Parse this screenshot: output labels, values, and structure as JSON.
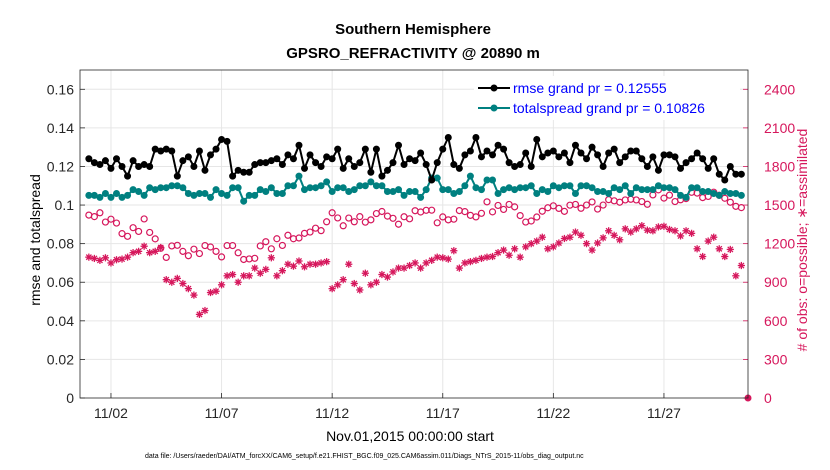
{
  "colors": {
    "rmse": "#000000",
    "spread": "#008080",
    "obs": "#d6175c",
    "legend_text": "#0000ff",
    "grid": "#e6e6e6"
  },
  "chart_data": {
    "type": "line",
    "title": "Southern Hemisphere",
    "subtitle": "GPSRO_REFRACTIVITY @ 20890 m",
    "xlabel": "Nov.01,2015 00:00:00 start",
    "ylabel": "rmse and totalspread",
    "y2label": "# of obs: o=possible; ∗=assimilated",
    "footnote": "data file: /Users/raeder/DAI/ATM_forcXX/CAM6_setup/f.e21.FHIST_BGC.f09_025.CAM6assim.011/Diags_NTrS_2015-11/obs_diag_output.nc",
    "xlim": [
      0.6,
      30.8
    ],
    "xticks": [
      2,
      7,
      12,
      17,
      22,
      27
    ],
    "xtick_labels": [
      "11/02",
      "11/07",
      "11/12",
      "11/17",
      "11/22",
      "11/27"
    ],
    "ylim": [
      0,
      0.17
    ],
    "yticks": [
      0,
      0.02,
      0.04,
      0.06,
      0.08,
      0.1,
      0.12,
      0.14,
      0.16
    ],
    "ytick_labels": [
      "0",
      "0.02",
      "0.04",
      "0.06",
      "0.08",
      "0.1",
      "0.12",
      "0.14",
      "0.16"
    ],
    "y2lim": [
      0,
      2550
    ],
    "y2ticks": [
      0,
      300,
      600,
      900,
      1200,
      1500,
      1800,
      2100,
      2400
    ],
    "y2tick_labels": [
      "0",
      "300",
      "600",
      "900",
      "1200",
      "1500",
      "1800",
      "2100",
      "2400"
    ],
    "legend": [
      "rmse grand pr = 0.12555",
      "totalspread grand pr = 0.10826"
    ],
    "legend_position": "top-right",
    "x": [
      1,
      1.25,
      1.5,
      1.75,
      2,
      2.25,
      2.5,
      2.75,
      3,
      3.25,
      3.5,
      3.75,
      4,
      4.25,
      4.5,
      4.75,
      5,
      5.25,
      5.5,
      5.75,
      6,
      6.25,
      6.5,
      6.75,
      7,
      7.25,
      7.5,
      7.75,
      8,
      8.25,
      8.5,
      8.75,
      9,
      9.25,
      9.5,
      9.75,
      10,
      10.25,
      10.5,
      10.75,
      11,
      11.25,
      11.5,
      11.75,
      12,
      12.25,
      12.5,
      12.75,
      13,
      13.25,
      13.5,
      13.75,
      14,
      14.25,
      14.5,
      14.75,
      15,
      15.25,
      15.5,
      15.75,
      16,
      16.25,
      16.5,
      16.75,
      17,
      17.25,
      17.5,
      17.75,
      18,
      18.25,
      18.5,
      18.75,
      19,
      19.25,
      19.5,
      19.75,
      20,
      20.25,
      20.5,
      20.75,
      21,
      21.25,
      21.5,
      21.75,
      22,
      22.25,
      22.5,
      22.75,
      23,
      23.25,
      23.5,
      23.75,
      24,
      24.25,
      24.5,
      24.75,
      25,
      25.25,
      25.5,
      25.75,
      26,
      26.25,
      26.5,
      26.75,
      27,
      27.25,
      27.5,
      27.75,
      28,
      28.25,
      28.5,
      28.75,
      29,
      29.25,
      29.5,
      29.75,
      30,
      30.25,
      30.5
    ],
    "series": [
      {
        "name": "rmse",
        "marker": "filled-circle",
        "values": [
          0.124,
          0.122,
          0.121,
          0.123,
          0.119,
          0.124,
          0.12,
          0.115,
          0.123,
          0.12,
          0.121,
          0.12,
          0.129,
          0.128,
          0.129,
          0.128,
          0.115,
          0.123,
          0.125,
          0.12,
          0.128,
          0.118,
          0.126,
          0.129,
          0.134,
          0.133,
          0.115,
          0.118,
          0.117,
          0.117,
          0.121,
          0.122,
          0.122,
          0.123,
          0.124,
          0.121,
          0.126,
          0.124,
          0.131,
          0.119,
          0.126,
          0.122,
          0.12,
          0.125,
          0.124,
          0.129,
          0.119,
          0.124,
          0.12,
          0.122,
          0.129,
          0.117,
          0.129,
          0.115,
          0.118,
          0.122,
          0.131,
          0.121,
          0.124,
          0.123,
          0.127,
          0.121,
          0.113,
          0.122,
          0.129,
          0.135,
          0.121,
          0.119,
          0.126,
          0.128,
          0.135,
          0.125,
          0.128,
          0.126,
          0.131,
          0.129,
          0.122,
          0.12,
          0.121,
          0.127,
          0.12,
          0.134,
          0.125,
          0.127,
          0.128,
          0.125,
          0.127,
          0.122,
          0.131,
          0.127,
          0.124,
          0.13,
          0.126,
          0.12,
          0.127,
          0.129,
          0.122,
          0.125,
          0.128,
          0.128,
          0.124,
          0.12,
          0.125,
          0.118,
          0.126,
          0.126,
          0.125,
          0.119,
          0.122,
          0.124,
          0.127,
          0.124,
          0.119,
          0.124,
          0.116,
          0.113,
          0.12,
          0.116,
          0.116
        ]
      },
      {
        "name": "totalspread",
        "marker": "filled-circle",
        "values": [
          0.105,
          0.105,
          0.104,
          0.106,
          0.104,
          0.106,
          0.104,
          0.105,
          0.108,
          0.107,
          0.105,
          0.109,
          0.108,
          0.109,
          0.109,
          0.11,
          0.11,
          0.109,
          0.106,
          0.105,
          0.106,
          0.106,
          0.104,
          0.108,
          0.106,
          0.105,
          0.109,
          0.109,
          0.102,
          0.105,
          0.105,
          0.108,
          0.107,
          0.109,
          0.106,
          0.106,
          0.11,
          0.11,
          0.115,
          0.108,
          0.109,
          0.109,
          0.11,
          0.112,
          0.107,
          0.109,
          0.109,
          0.107,
          0.108,
          0.11,
          0.11,
          0.112,
          0.11,
          0.11,
          0.107,
          0.107,
          0.108,
          0.105,
          0.107,
          0.107,
          0.104,
          0.108,
          0.114,
          0.114,
          0.108,
          0.108,
          0.106,
          0.107,
          0.11,
          0.115,
          0.109,
          0.108,
          0.113,
          0.113,
          0.106,
          0.108,
          0.109,
          0.108,
          0.109,
          0.109,
          0.11,
          0.106,
          0.108,
          0.107,
          0.11,
          0.109,
          0.11,
          0.11,
          0.106,
          0.11,
          0.11,
          0.109,
          0.107,
          0.107,
          0.106,
          0.109,
          0.108,
          0.11,
          0.106,
          0.109,
          0.108,
          0.108,
          0.108,
          0.11,
          0.109,
          0.109,
          0.108,
          0.105,
          0.104,
          0.109,
          0.109,
          0.107,
          0.107,
          0.106,
          0.105,
          0.107,
          0.106,
          0.106,
          0.105
        ]
      },
      {
        "name": "possible obs",
        "axis": "right",
        "marker": "open-circle",
        "values": [
          1422,
          1410,
          1440,
          1368,
          1390,
          1360,
          1278,
          1257,
          1324,
          1295,
          1392,
          1287,
          1237,
          1164,
          1093,
          1182,
          1187,
          1140,
          1106,
          1157,
          1123,
          1185,
          1174,
          1140,
          1097,
          1185,
          1185,
          1129,
          1077,
          1081,
          1086,
          1182,
          1215,
          1160,
          1238,
          1186,
          1265,
          1238,
          1244,
          1280,
          1290,
          1320,
          1301,
          1370,
          1440,
          1400,
          1339,
          1399,
          1370,
          1410,
          1367,
          1385,
          1434,
          1450,
          1414,
          1397,
          1351,
          1409,
          1393,
          1456,
          1446,
          1459,
          1460,
          1362,
          1408,
          1385,
          1390,
          1457,
          1449,
          1420,
          1408,
          1436,
          1525,
          1447,
          1497,
          1466,
          1505,
          1486,
          1418,
          1368,
          1376,
          1407,
          1452,
          1479,
          1494,
          1474,
          1451,
          1499,
          1505,
          1475,
          1500,
          1524,
          1469,
          1500,
          1542,
          1533,
          1522,
          1540,
          1545,
          1540,
          1527,
          1506,
          1579,
          1618,
          1554,
          1577,
          1527,
          1541,
          1550,
          1599,
          1593,
          1558,
          1567,
          1600,
          1576,
          1553,
          1522,
          1490,
          1480
        ]
      },
      {
        "name": "assimilated obs",
        "axis": "right",
        "marker": "asterisk",
        "values": [
          1095,
          1085,
          1070,
          1090,
          1050,
          1075,
          1080,
          1095,
          1130,
          1140,
          1180,
          1130,
          1140,
          1170,
          920,
          900,
          930,
          890,
          850,
          800,
          650,
          680,
          820,
          830,
          880,
          950,
          960,
          900,
          950,
          950,
          1010,
          970,
          1000,
          1090,
          950,
          990,
          1040,
          1025,
          1065,
          1020,
          1040,
          1040,
          1050,
          1060,
          850,
          880,
          920,
          1040,
          890,
          840,
          970,
          880,
          900,
          960,
          940,
          980,
          1010,
          1010,
          1030,
          1050,
          1010,
          1050,
          1070,
          1095,
          1090,
          1080,
          1145,
          1010,
          1050,
          1060,
          1070,
          1085,
          1095,
          1100,
          1130,
          1150,
          1110,
          1160,
          1095,
          1175,
          1200,
          1220,
          1250,
          1160,
          1175,
          1205,
          1240,
          1250,
          1290,
          1265,
          1200,
          1150,
          1205,
          1245,
          1300,
          1265,
          1230,
          1315,
          1290,
          1315,
          1340,
          1305,
          1300,
          1330,
          1335,
          1310,
          1300,
          1260,
          1300,
          1280,
          1160,
          1100,
          1220,
          1250,
          1160,
          1100,
          1155,
          950,
          1030
        ]
      }
    ]
  }
}
